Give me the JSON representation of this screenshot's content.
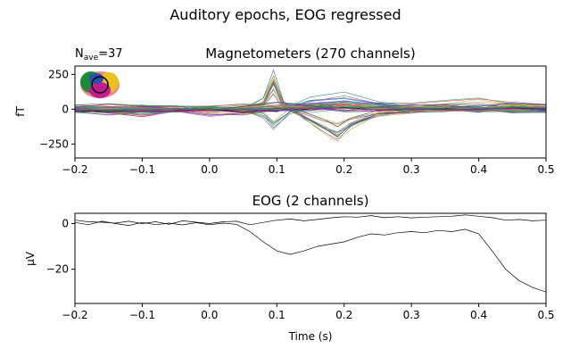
{
  "figure": {
    "suptitle": "Auditory epochs, EOG regressed",
    "nave_label": "N",
    "nave_sub": "ave",
    "nave_value": "=37"
  },
  "chart_data": [
    {
      "type": "line",
      "title": "Magnetometers (270 channels)",
      "xlabel": "",
      "ylabel": "fT",
      "xlim": [
        -0.2,
        0.5
      ],
      "ylim": [
        -350,
        310
      ],
      "x_ticks": [
        -0.2,
        -0.1,
        0.0,
        0.1,
        0.2,
        0.3,
        0.4,
        0.5
      ],
      "x_tick_labels": [
        "−0.2",
        "−0.1",
        "0.0",
        "0.1",
        "0.2",
        "0.3",
        "0.4",
        "0.5"
      ],
      "y_ticks": [
        250,
        0,
        -250
      ],
      "y_tick_labels": [
        "250",
        "0",
        "−250"
      ],
      "grid": false,
      "legend": "sensor-topography-inset-top-left",
      "series_count": 270,
      "representative_series": [
        {
          "color": "#2b4fb0",
          "x": [
            -0.2,
            -0.15,
            -0.1,
            -0.05,
            0,
            0.05,
            0.08,
            0.095,
            0.11,
            0.14,
            0.17,
            0.19,
            0.21,
            0.25,
            0.3,
            0.35,
            0.4,
            0.45,
            0.5
          ],
          "y": [
            5,
            -10,
            20,
            -15,
            10,
            -5,
            60,
            230,
            40,
            -60,
            -150,
            -200,
            -120,
            -40,
            -20,
            10,
            -10,
            20,
            0
          ]
        },
        {
          "color": "#1f3a8a",
          "x": [
            -0.2,
            -0.15,
            -0.1,
            -0.05,
            0,
            0.05,
            0.08,
            0.095,
            0.11,
            0.14,
            0.17,
            0.19,
            0.21,
            0.25,
            0.3,
            0.35,
            0.4,
            0.45,
            0.5
          ],
          "y": [
            0,
            15,
            -10,
            10,
            -5,
            10,
            40,
            180,
            20,
            -40,
            -120,
            -170,
            -90,
            -30,
            -10,
            5,
            0,
            -10,
            10
          ]
        },
        {
          "color": "#c21d8f",
          "x": [
            -0.2,
            -0.15,
            -0.1,
            -0.05,
            0,
            0.05,
            0.1,
            0.15,
            0.2,
            0.25,
            0.3,
            0.35,
            0.4,
            0.45,
            0.5
          ],
          "y": [
            -10,
            -30,
            -50,
            -20,
            -45,
            -40,
            -10,
            20,
            10,
            0,
            -20,
            -15,
            10,
            0,
            -10
          ]
        },
        {
          "color": "#1a8a3a",
          "x": [
            -0.2,
            -0.15,
            -0.1,
            -0.05,
            0,
            0.05,
            0.08,
            0.095,
            0.12,
            0.16,
            0.2,
            0.25,
            0.3,
            0.35,
            0.4,
            0.45,
            0.5
          ],
          "y": [
            -20,
            -40,
            -20,
            -10,
            0,
            -10,
            -60,
            -150,
            -20,
            40,
            60,
            30,
            10,
            -10,
            0,
            -20,
            -10
          ]
        },
        {
          "color": "#e8504a",
          "x": [
            -0.2,
            -0.15,
            -0.1,
            -0.05,
            0,
            0.05,
            0.1,
            0.15,
            0.2,
            0.25,
            0.3,
            0.35,
            0.4,
            0.45,
            0.5
          ],
          "y": [
            0,
            10,
            -5,
            5,
            15,
            5,
            20,
            40,
            30,
            10,
            5,
            15,
            -5,
            10,
            5
          ]
        },
        {
          "color": "#e8a020",
          "x": [
            -0.2,
            -0.15,
            -0.1,
            -0.05,
            0,
            0.05,
            0.1,
            0.15,
            0.2,
            0.25,
            0.3,
            0.35,
            0.4,
            0.45,
            0.5
          ],
          "y": [
            20,
            10,
            15,
            5,
            10,
            20,
            10,
            -10,
            20,
            30,
            20,
            40,
            60,
            30,
            20
          ]
        },
        {
          "color": "#1c8f8f",
          "x": [
            -0.2,
            -0.15,
            -0.1,
            -0.05,
            0,
            0.05,
            0.1,
            0.15,
            0.2,
            0.25,
            0.3,
            0.35,
            0.4,
            0.45,
            0.5
          ],
          "y": [
            10,
            -5,
            10,
            -10,
            5,
            0,
            -20,
            60,
            90,
            40,
            10,
            -5,
            5,
            10,
            -5
          ]
        },
        {
          "color": "#b0b020",
          "x": [
            -0.2,
            -0.15,
            -0.1,
            -0.05,
            0,
            0.05,
            0.1,
            0.15,
            0.2,
            0.25,
            0.3,
            0.35,
            0.4,
            0.45,
            0.5
          ],
          "y": [
            15,
            30,
            20,
            10,
            0,
            20,
            40,
            20,
            -10,
            10,
            30,
            20,
            10,
            40,
            30
          ]
        },
        {
          "color": "#000000",
          "x": [
            -0.2,
            -0.15,
            -0.1,
            -0.05,
            0,
            0.05,
            0.1,
            0.15,
            0.2,
            0.25,
            0.3,
            0.35,
            0.4,
            0.45,
            0.5
          ],
          "y": [
            -5,
            -20,
            -10,
            -15,
            -5,
            -10,
            -5,
            0,
            5,
            0,
            -5,
            0,
            -5,
            5,
            0
          ]
        }
      ]
    },
    {
      "type": "line",
      "title": "EOG (2 channels)",
      "xlabel": "Time (s)",
      "ylabel": "μV",
      "xlim": [
        -0.2,
        0.5
      ],
      "ylim": [
        -35,
        4.5
      ],
      "x_ticks": [
        -0.2,
        -0.1,
        0.0,
        0.1,
        0.2,
        0.3,
        0.4,
        0.5
      ],
      "x_tick_labels": [
        "−0.2",
        "−0.1",
        "0.0",
        "0.1",
        "0.2",
        "0.3",
        "0.4",
        "0.5"
      ],
      "y_ticks": [
        0,
        -20
      ],
      "y_tick_labels": [
        "0",
        "−20"
      ],
      "grid": false,
      "series": [
        {
          "color": "#000000",
          "x": [
            -0.2,
            -0.18,
            -0.16,
            -0.14,
            -0.12,
            -0.1,
            -0.08,
            -0.06,
            -0.04,
            -0.02,
            0.0,
            0.02,
            0.04,
            0.06,
            0.08,
            0.1,
            0.12,
            0.14,
            0.16,
            0.18,
            0.2,
            0.22,
            0.24,
            0.26,
            0.28,
            0.3,
            0.32,
            0.34,
            0.36,
            0.38,
            0.4,
            0.42,
            0.44,
            0.46,
            0.48,
            0.5
          ],
          "y": [
            1.5,
            0.8,
            0.6,
            0.2,
            1,
            0,
            0.8,
            -0.3,
            1.2,
            0.6,
            0,
            0.8,
            1,
            -0.5,
            0.5,
            1.5,
            2,
            1.2,
            1.8,
            2.5,
            3,
            2.8,
            3.5,
            2.6,
            3,
            2.5,
            2.8,
            3,
            3.2,
            3.8,
            3.2,
            2.6,
            1.5,
            1.8,
            1.2,
            1.5
          ]
        },
        {
          "color": "#000000",
          "x": [
            -0.2,
            -0.18,
            -0.16,
            -0.14,
            -0.12,
            -0.1,
            -0.08,
            -0.06,
            -0.04,
            -0.02,
            0.0,
            0.02,
            0.04,
            0.06,
            0.08,
            0.1,
            0.12,
            0.14,
            0.16,
            0.18,
            0.2,
            0.22,
            0.24,
            0.26,
            0.28,
            0.3,
            0.32,
            0.34,
            0.36,
            0.38,
            0.4,
            0.42,
            0.44,
            0.46,
            0.48,
            0.5
          ],
          "y": [
            0.5,
            -0.5,
            1,
            0,
            -0.8,
            0.5,
            -0.5,
            0.2,
            -0.6,
            0.4,
            -0.5,
            0.2,
            -0.3,
            -3.5,
            -8,
            -12,
            -13.5,
            -12,
            -10,
            -9,
            -8,
            -6,
            -4.5,
            -5,
            -4,
            -3.5,
            -4,
            -3,
            -3.5,
            -2.5,
            -4.5,
            -12,
            -20,
            -25,
            -28,
            -30
          ]
        }
      ]
    }
  ]
}
